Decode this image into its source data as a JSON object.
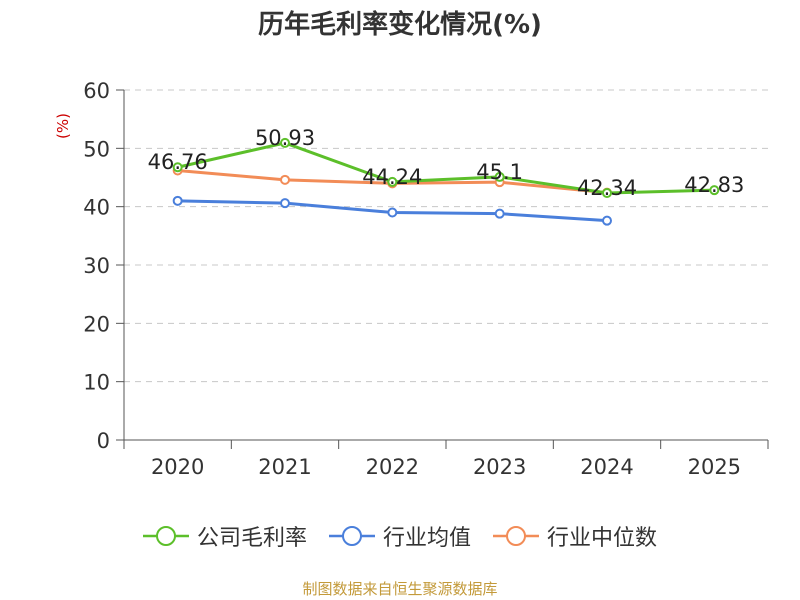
{
  "chart_data": {
    "type": "line",
    "title": "历年毛利率变化情况(%)",
    "ylabel": "(%)",
    "xlabel": "",
    "categories": [
      "2020",
      "2021",
      "2022",
      "2023",
      "2024",
      "2025"
    ],
    "ylim": [
      0,
      60
    ],
    "yticks": [
      0,
      10,
      20,
      30,
      40,
      50,
      60
    ],
    "grid": true,
    "legend_position": "bottom",
    "series": [
      {
        "name": "公司毛利率",
        "color": "#5cbf2a",
        "values": [
          46.76,
          50.93,
          44.24,
          45.1,
          42.34,
          42.83
        ],
        "labels": [
          "46.76",
          "50.93",
          "44.24",
          "45.1",
          "42.34",
          "42.83"
        ]
      },
      {
        "name": "行业均值",
        "color": "#4a7fdb",
        "values": [
          41.0,
          40.6,
          39.0,
          38.8,
          37.6,
          null
        ],
        "labels": []
      },
      {
        "name": "行业中位数",
        "color": "#f28c57",
        "values": [
          46.2,
          44.6,
          44.0,
          44.2,
          42.4,
          null
        ],
        "labels": []
      }
    ]
  },
  "source": "制图数据来自恒生聚源数据库"
}
